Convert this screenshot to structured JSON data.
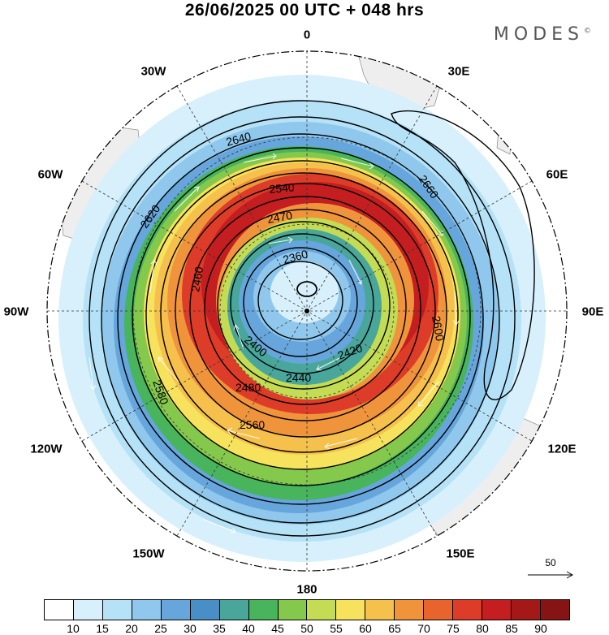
{
  "header": {
    "title": "26/06/2025  00 UTC  + 048 hrs",
    "brand": "MODES",
    "brand_mark": "©"
  },
  "map": {
    "projection": "south polar stereographic",
    "meridian_labels": [
      "0",
      "30E",
      "60E",
      "90E",
      "120E",
      "150E",
      "180",
      "150W",
      "120W",
      "90W",
      "60W",
      "30W"
    ],
    "contour_labels": [
      "2360",
      "2400",
      "2420",
      "2440",
      "2460",
      "2470",
      "2480",
      "2540",
      "2560",
      "2580",
      "2600",
      "2620",
      "2640",
      "2660"
    ],
    "fields": [
      "geopotential height contours",
      "wind speed shading",
      "wind vectors"
    ],
    "colors": {
      "land": "#eeeeee",
      "contour": "#000000",
      "vector": "#ffffff"
    }
  },
  "vector_reference": {
    "value": "50"
  },
  "colorbar": {
    "ticks": [
      "10",
      "15",
      "20",
      "25",
      "30",
      "35",
      "40",
      "45",
      "50",
      "55",
      "60",
      "65",
      "70",
      "75",
      "80",
      "85",
      "90"
    ],
    "colors": [
      "#ffffff",
      "#d7f0fb",
      "#b6e2f7",
      "#8fc8ec",
      "#66a6dc",
      "#4a8ec8",
      "#48a69a",
      "#48b45c",
      "#84c84c",
      "#c4dc54",
      "#f6e25c",
      "#f6c04c",
      "#f0943c",
      "#e8642c",
      "#dc3c28",
      "#c41e20",
      "#a41818",
      "#861414"
    ]
  }
}
